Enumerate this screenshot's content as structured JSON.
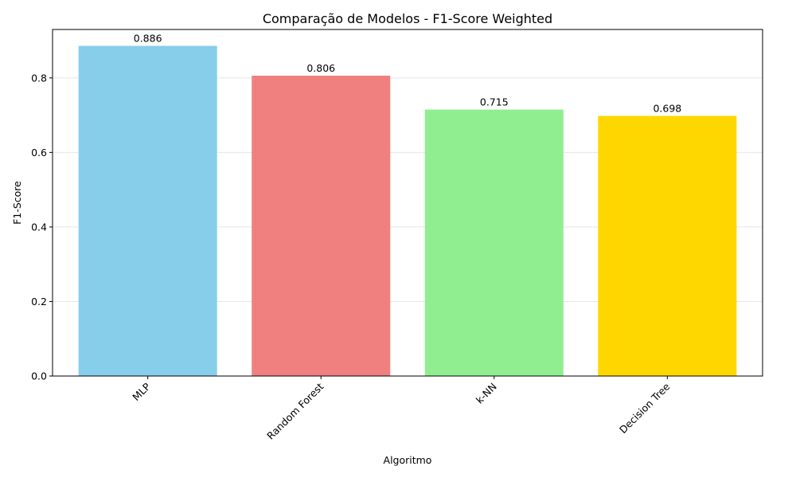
{
  "chart_data": {
    "type": "bar",
    "title": "Comparação de Modelos - F1-Score Weighted",
    "xlabel": "Algoritmo",
    "ylabel": "F1-Score",
    "categories": [
      "MLP",
      "Random Forest",
      "k-NN",
      "Decision Tree"
    ],
    "values": [
      0.886,
      0.806,
      0.715,
      0.698
    ],
    "value_labels": [
      "0.886",
      "0.806",
      "0.715",
      "0.698"
    ],
    "colors": [
      "#87ceeb",
      "#f08080",
      "#90ee90",
      "#ffd700"
    ],
    "ylim": [
      0,
      0.93
    ],
    "yticks": [
      0.0,
      0.2,
      0.4,
      0.6,
      0.8
    ],
    "ytick_labels": [
      "0.0",
      "0.2",
      "0.4",
      "0.6",
      "0.8"
    ],
    "grid": "y",
    "xtick_rotation": 45
  }
}
